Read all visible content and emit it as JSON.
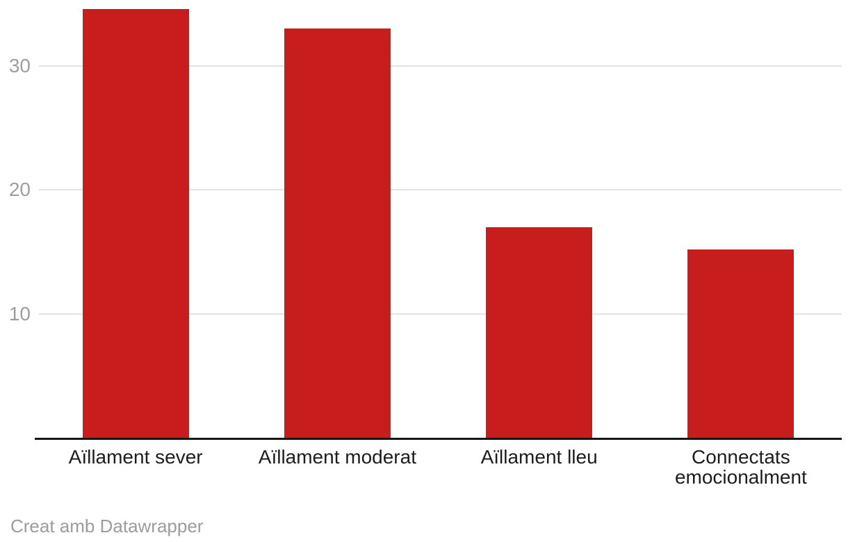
{
  "chart_data": {
    "type": "bar",
    "categories": [
      "Aïllament sever",
      "Aïllament moderat",
      "Aïllament lleu",
      "Connectats emocionalment"
    ],
    "values": [
      34.6,
      33,
      17,
      15.2
    ],
    "title": "",
    "xlabel": "",
    "ylabel": "",
    "ylim": [
      0,
      35.3
    ],
    "yticks": [
      10,
      20,
      30
    ],
    "grid": true,
    "legend": "none",
    "bar_color": "#c71e1d"
  },
  "colors": {
    "bar": "#c71e1d",
    "gridline": "#e2e2e2",
    "axis_line": "#161616",
    "tick_label": "#9e9e9e",
    "category_label": "#1d1d1d",
    "credit_text": "#9c9c9c",
    "background": "#ffffff"
  },
  "footer": {
    "credit": "Creat amb Datawrapper"
  }
}
